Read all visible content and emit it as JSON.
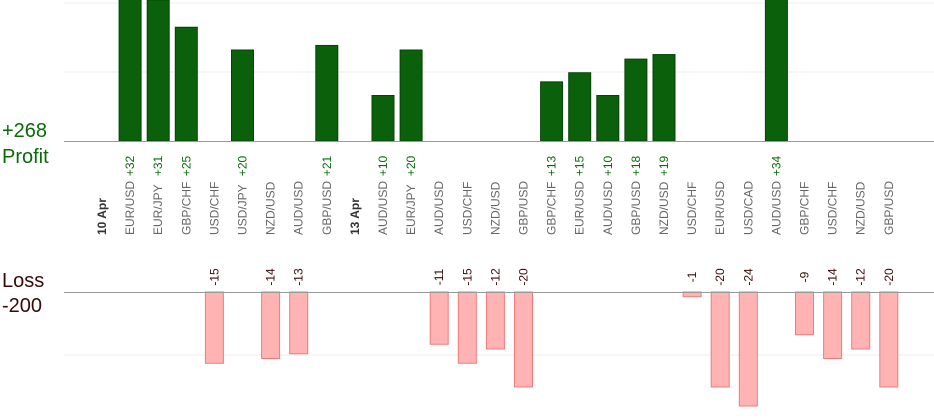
{
  "colors": {
    "profit_bar": "#0b610b",
    "profit_bar_stroke": "#054405",
    "profit_text": "#0a6a0a",
    "loss_bar": "#ffb3b3",
    "loss_bar_stroke": "#f07b7b",
    "loss_text": "#3a0a0a",
    "axis_line": "#999999",
    "grid_line": "#ececec",
    "tick_text": "#666666"
  },
  "labels": {
    "profit_total": "+268",
    "profit_title": "Profit",
    "loss_title": "Loss",
    "loss_total": "-200"
  },
  "chart_data": {
    "type": "bar",
    "grid": true,
    "ylim_profit": [
      0,
      40
    ],
    "ylim_loss": [
      -24,
      0
    ],
    "categories": [
      {
        "date": "10 Apr",
        "pair": "",
        "profit": null,
        "loss": null
      },
      {
        "date": "",
        "pair": "EUR/USD",
        "profit": 32,
        "loss": null
      },
      {
        "date": "",
        "pair": "EUR/JPY",
        "profit": 31,
        "loss": null
      },
      {
        "date": "",
        "pair": "GBP/CHF",
        "profit": 25,
        "loss": null
      },
      {
        "date": "",
        "pair": "USD/CHF",
        "profit": null,
        "loss": -15
      },
      {
        "date": "",
        "pair": "USD/JPY",
        "profit": 20,
        "loss": null
      },
      {
        "date": "",
        "pair": "NZD/USD",
        "profit": null,
        "loss": -14
      },
      {
        "date": "",
        "pair": "AUD/USD",
        "profit": null,
        "loss": -13
      },
      {
        "date": "",
        "pair": "GBP/USD",
        "profit": 21,
        "loss": null
      },
      {
        "date": "13 Apr",
        "pair": "",
        "profit": null,
        "loss": null
      },
      {
        "date": "",
        "pair": "AUD/USD",
        "profit": 10,
        "loss": null
      },
      {
        "date": "",
        "pair": "EUR/JPY",
        "profit": 20,
        "loss": null
      },
      {
        "date": "",
        "pair": "AUD/USD",
        "profit": null,
        "loss": -11
      },
      {
        "date": "",
        "pair": "USD/CHF",
        "profit": null,
        "loss": -15
      },
      {
        "date": "",
        "pair": "NZD/USD",
        "profit": null,
        "loss": -12
      },
      {
        "date": "",
        "pair": "GBP/USD",
        "profit": null,
        "loss": -20
      },
      {
        "date": "",
        "pair": "GBP/CHF",
        "profit": 13,
        "loss": null
      },
      {
        "date": "",
        "pair": "EUR/USD",
        "profit": 15,
        "loss": null
      },
      {
        "date": "",
        "pair": "AUD/USD",
        "profit": 10,
        "loss": null
      },
      {
        "date": "",
        "pair": "GBP/USD",
        "profit": 18,
        "loss": null
      },
      {
        "date": "",
        "pair": "NZD/USD",
        "profit": 19,
        "loss": null
      },
      {
        "date": "",
        "pair": "USD/CHF",
        "profit": null,
        "loss": -1
      },
      {
        "date": "",
        "pair": "EUR/USD",
        "profit": null,
        "loss": -20
      },
      {
        "date": "",
        "pair": "USD/CAD",
        "profit": null,
        "loss": -24
      },
      {
        "date": "",
        "pair": "AUD/USD",
        "profit": 34,
        "loss": null
      },
      {
        "date": "",
        "pair": "GBP/CHF",
        "profit": null,
        "loss": -9
      },
      {
        "date": "",
        "pair": "USD/CHF",
        "profit": null,
        "loss": -14
      },
      {
        "date": "",
        "pair": "NZD/USD",
        "profit": null,
        "loss": -12
      },
      {
        "date": "",
        "pair": "GBP/USD",
        "profit": null,
        "loss": -20
      }
    ]
  }
}
